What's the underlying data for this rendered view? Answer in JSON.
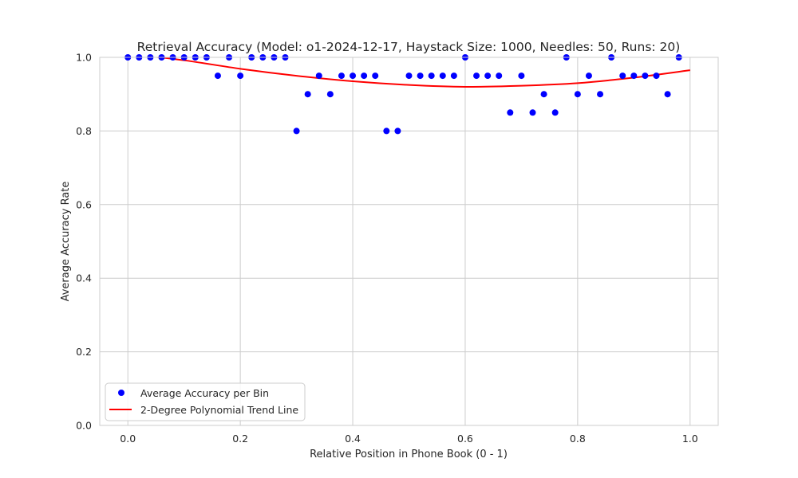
{
  "chart_data": {
    "type": "scatter",
    "title": "Retrieval Accuracy (Model: o1-2024-12-17, Haystack Size: 1000, Needles: 50, Runs: 20)",
    "xlabel": "Relative Position in Phone Book (0 - 1)",
    "ylabel": "Average Accuracy Rate",
    "xlim": [
      -0.05,
      1.05
    ],
    "ylim": [
      0.0,
      1.0
    ],
    "xticks": [
      0.0,
      0.2,
      0.4,
      0.6,
      0.8,
      1.0
    ],
    "yticks": [
      0.0,
      0.2,
      0.4,
      0.6,
      0.8,
      1.0
    ],
    "xtick_labels": [
      "0.0",
      "0.2",
      "0.4",
      "0.6",
      "0.8",
      "1.0"
    ],
    "ytick_labels": [
      "0.0",
      "0.2",
      "0.4",
      "0.6",
      "0.8",
      "1.0"
    ],
    "grid": true,
    "legend_position": "lower-left",
    "series": [
      {
        "name": "Average Accuracy per Bin",
        "kind": "scatter",
        "color": "#0000ff",
        "x": [
          0.0,
          0.02,
          0.04,
          0.06,
          0.08,
          0.1,
          0.12,
          0.14,
          0.16,
          0.18,
          0.2,
          0.22,
          0.24,
          0.26,
          0.28,
          0.3,
          0.32,
          0.34,
          0.36,
          0.38,
          0.4,
          0.42,
          0.44,
          0.46,
          0.48,
          0.5,
          0.52,
          0.54,
          0.56,
          0.58,
          0.6,
          0.62,
          0.64,
          0.66,
          0.68,
          0.7,
          0.72,
          0.74,
          0.76,
          0.78,
          0.8,
          0.82,
          0.84,
          0.86,
          0.88,
          0.9,
          0.92,
          0.94,
          0.96,
          0.98
        ],
        "y": [
          1.0,
          1.0,
          1.0,
          1.0,
          1.0,
          1.0,
          1.0,
          1.0,
          0.95,
          1.0,
          0.95,
          1.0,
          1.0,
          1.0,
          1.0,
          0.8,
          0.9,
          0.95,
          0.9,
          0.95,
          0.95,
          0.95,
          0.95,
          0.8,
          0.8,
          0.95,
          0.95,
          0.95,
          0.95,
          0.95,
          1.0,
          0.95,
          0.95,
          0.95,
          0.85,
          0.95,
          0.85,
          0.9,
          0.85,
          1.0,
          0.9,
          0.95,
          0.9,
          1.0,
          0.95,
          0.95,
          0.95,
          0.95,
          0.9,
          1.0
        ]
      },
      {
        "name": "2-Degree Polynomial Trend Line",
        "kind": "line",
        "color": "#ff0000",
        "x": [
          0.0,
          0.1,
          0.2,
          0.3,
          0.4,
          0.5,
          0.6,
          0.7,
          0.8,
          0.9,
          1.0
        ],
        "y": [
          1.01,
          0.992,
          0.969,
          0.95,
          0.935,
          0.925,
          0.92,
          0.923,
          0.93,
          0.945,
          0.965
        ]
      }
    ]
  }
}
